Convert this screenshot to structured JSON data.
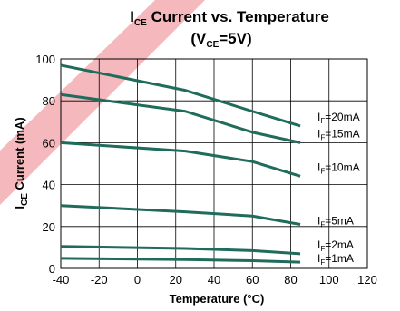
{
  "chart_data": {
    "type": "line",
    "title_parts": {
      "line1_main": "I",
      "line1_sub": "CE",
      "line1_rest": " Current vs. Temperature",
      "line2_open": "(V",
      "line2_sub": "CE",
      "line2_rest": "=5V)"
    },
    "xlabel": "Temperature (°C)",
    "ylabel_parts": {
      "main": "I",
      "sub": "CE",
      "rest": " Current (mA)"
    },
    "xlim": [
      -40,
      120
    ],
    "ylim": [
      0,
      100
    ],
    "x_ticks": [
      -40,
      -20,
      0,
      20,
      40,
      60,
      80,
      100,
      120
    ],
    "y_ticks": [
      0,
      20,
      40,
      60,
      80,
      100
    ],
    "x_tick_labels": [
      "-40",
      "-20",
      "0",
      "20",
      "40",
      "60",
      "80",
      "100",
      "120"
    ],
    "y_tick_labels": [
      "0",
      "20",
      "40",
      "60",
      "80",
      "100"
    ],
    "grid": true,
    "line_color": "#1f6b5c",
    "watermark_color": "#f4b8bd",
    "series": [
      {
        "label_main": "I",
        "label_sub": "F",
        "label_rest": "=20mA",
        "x": [
          -40,
          25,
          60,
          85
        ],
        "y": [
          97,
          85,
          75,
          68
        ]
      },
      {
        "label_main": "I",
        "label_sub": "F",
        "label_rest": "=15mA",
        "x": [
          -40,
          25,
          60,
          85
        ],
        "y": [
          83,
          75,
          65,
          60
        ]
      },
      {
        "label_main": "I",
        "label_sub": "F",
        "label_rest": "=10mA",
        "x": [
          -40,
          25,
          60,
          85
        ],
        "y": [
          60,
          56,
          51,
          44
        ]
      },
      {
        "label_main": "I",
        "label_sub": "F",
        "label_rest": "=5mA",
        "x": [
          -40,
          25,
          60,
          85
        ],
        "y": [
          30,
          27,
          25,
          21
        ]
      },
      {
        "label_main": "I",
        "label_sub": "F",
        "label_rest": "=2mA",
        "x": [
          -40,
          25,
          60,
          85
        ],
        "y": [
          10.5,
          9.5,
          8.5,
          7
        ]
      },
      {
        "label_main": "I",
        "label_sub": "F",
        "label_rest": "=1mA",
        "x": [
          -40,
          25,
          60,
          85
        ],
        "y": [
          4.8,
          4.2,
          3.7,
          3.0
        ]
      }
    ]
  }
}
